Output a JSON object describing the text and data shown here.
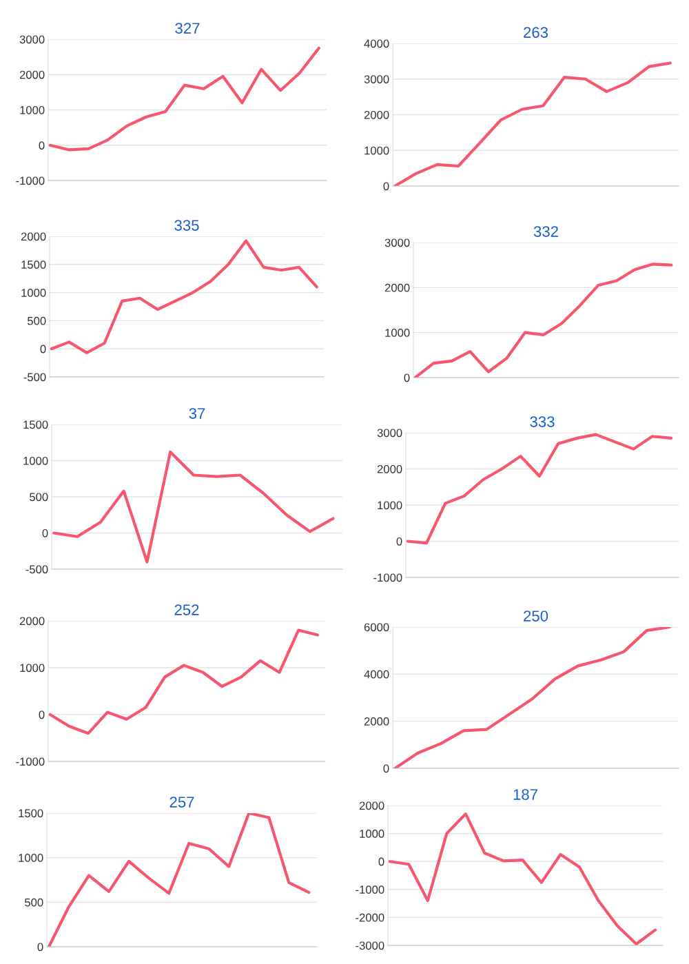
{
  "chart_data": [
    {
      "type": "line",
      "title": "327",
      "categories": [
        null,
        null,
        null,
        null,
        null,
        null,
        null,
        null,
        null,
        null,
        null,
        null,
        null,
        null,
        null
      ],
      "series": [
        {
          "color": "#f7566f",
          "values": [
            0,
            -130,
            -100,
            150,
            550,
            800,
            950,
            1700,
            1600,
            1950,
            1200,
            2150,
            1550,
            2050,
            2750
          ]
        }
      ],
      "ylim": [
        -1000,
        3000
      ],
      "yticks": [
        -1000,
        0,
        1000,
        2000,
        3000
      ],
      "grid": "y",
      "tick_labels": "y"
    },
    {
      "type": "line",
      "title": "263",
      "categories": [
        null,
        null,
        null,
        null,
        null,
        null,
        null,
        null,
        null,
        null,
        null,
        null,
        null,
        null
      ],
      "series": [
        {
          "color": "#f7566f",
          "values": [
            0,
            350,
            600,
            560,
            1200,
            1850,
            2150,
            2250,
            3050,
            3000,
            2650,
            2900,
            3350,
            3450
          ]
        }
      ],
      "ylim": [
        0,
        4000
      ],
      "yticks": [
        0,
        1000,
        2000,
        3000,
        4000
      ],
      "grid": "y",
      "tick_labels": "y"
    },
    {
      "type": "line",
      "title": "335",
      "categories": [
        null,
        null,
        null,
        null,
        null,
        null,
        null,
        null,
        null,
        null,
        null,
        null,
        null,
        null,
        null,
        null
      ],
      "series": [
        {
          "color": "#f7566f",
          "values": [
            0,
            120,
            -70,
            100,
            850,
            900,
            700,
            850,
            1000,
            1200,
            1500,
            1920,
            1450,
            1400,
            1450,
            1100
          ]
        }
      ],
      "ylim": [
        -500,
        2000
      ],
      "yticks": [
        -500,
        0,
        500,
        1000,
        1500,
        2000
      ],
      "grid": "y",
      "tick_labels": "y"
    },
    {
      "type": "line",
      "title": "332",
      "categories": [
        null,
        null,
        null,
        null,
        null,
        null,
        null,
        null,
        null,
        null,
        null,
        null,
        null,
        null,
        null
      ],
      "series": [
        {
          "color": "#f7566f",
          "values": [
            0,
            320,
            370,
            580,
            130,
            430,
            1000,
            950,
            1200,
            1600,
            2050,
            2150,
            2400,
            2520,
            2500
          ]
        }
      ],
      "ylim": [
        0,
        3000
      ],
      "yticks": [
        0,
        1000,
        2000,
        3000
      ],
      "grid": "y",
      "tick_labels": "y"
    },
    {
      "type": "line",
      "title": "37",
      "categories": [
        null,
        null,
        null,
        null,
        null,
        null,
        null,
        null,
        null,
        null,
        null,
        null,
        null
      ],
      "series": [
        {
          "color": "#f7566f",
          "values": [
            0,
            -50,
            150,
            580,
            -400,
            1120,
            800,
            780,
            800,
            550,
            250,
            20,
            200
          ]
        }
      ],
      "ylim": [
        -500,
        1500
      ],
      "yticks": [
        -500,
        0,
        500,
        1000,
        1500
      ],
      "grid": "y",
      "tick_labels": "y"
    },
    {
      "type": "line",
      "title": "333",
      "categories": [
        null,
        null,
        null,
        null,
        null,
        null,
        null,
        null,
        null,
        null,
        null,
        null,
        null,
        null,
        null
      ],
      "series": [
        {
          "color": "#f7566f",
          "values": [
            0,
            -50,
            1050,
            1250,
            1700,
            2000,
            2350,
            1800,
            2700,
            2850,
            2950,
            2750,
            2550,
            2900,
            2850
          ]
        }
      ],
      "ylim": [
        -1000,
        3000
      ],
      "yticks": [
        -1000,
        0,
        1000,
        2000,
        3000
      ],
      "grid": "y",
      "tick_labels": "y"
    },
    {
      "type": "line",
      "title": "252",
      "categories": [
        null,
        null,
        null,
        null,
        null,
        null,
        null,
        null,
        null,
        null,
        null,
        null,
        null,
        null,
        null
      ],
      "series": [
        {
          "color": "#f7566f",
          "values": [
            0,
            -250,
            -400,
            50,
            -100,
            150,
            800,
            1050,
            900,
            600,
            800,
            1150,
            900,
            1800,
            1700
          ]
        }
      ],
      "ylim": [
        -1000,
        2000
      ],
      "yticks": [
        -1000,
        0,
        1000,
        2000
      ],
      "grid": "y",
      "tick_labels": "y"
    },
    {
      "type": "line",
      "title": "250",
      "categories": [
        null,
        null,
        null,
        null,
        null,
        null,
        null,
        null,
        null,
        null,
        null,
        null,
        null
      ],
      "series": [
        {
          "color": "#f7566f",
          "values": [
            0,
            650,
            1050,
            1600,
            1650,
            2300,
            2950,
            3800,
            4350,
            4600,
            4950,
            5850,
            6000
          ]
        }
      ],
      "ylim": [
        0,
        6000
      ],
      "yticks": [
        0,
        2000,
        4000,
        6000
      ],
      "grid": "y",
      "tick_labels": "y"
    },
    {
      "type": "line",
      "title": "257",
      "categories": [
        null,
        null,
        null,
        null,
        null,
        null,
        null,
        null,
        null,
        null,
        null,
        null,
        null,
        null
      ],
      "series": [
        {
          "color": "#f7566f",
          "values": [
            0,
            450,
            800,
            620,
            960,
            770,
            600,
            1160,
            1100,
            900,
            1500,
            1450,
            720,
            610
          ]
        }
      ],
      "ylim": [
        0,
        1500
      ],
      "yticks": [
        0,
        500,
        1000,
        1500
      ],
      "grid": "y",
      "tick_labels": "y"
    },
    {
      "type": "line",
      "title": "187",
      "categories": [
        null,
        null,
        null,
        null,
        null,
        null,
        null,
        null,
        null,
        null,
        null,
        null,
        null,
        null,
        null
      ],
      "series": [
        {
          "color": "#f7566f",
          "values": [
            0,
            -100,
            -1400,
            1000,
            1700,
            300,
            20,
            50,
            -750,
            250,
            -200,
            -1400,
            -2300,
            -2950,
            -2450
          ]
        }
      ],
      "ylim": [
        -3000,
        2000
      ],
      "yticks": [
        -3000,
        -2000,
        -1000,
        0,
        1000,
        2000
      ],
      "grid": "y",
      "tick_labels": "y"
    }
  ]
}
